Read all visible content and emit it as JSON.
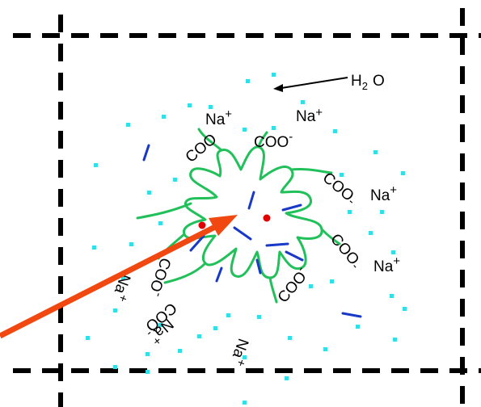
{
  "water": {
    "symbol": "H",
    "subscript": "2",
    "element": "O"
  },
  "labels": {
    "sodium": "Na",
    "plus": "+",
    "carboxylate": "COO",
    "minus": "-"
  },
  "colors": {
    "surfactant_chain": "#22c05a",
    "carbon_tail": "#1838c8",
    "water_dot": "#30e0e8",
    "pointer_arrow": "#f04810",
    "solubilized_particle": "#e00000",
    "cell_boundary": "#000000"
  },
  "icons": {
    "water_arrow": "arrow-left-icon",
    "pointer_arrow": "arrow-icon"
  }
}
